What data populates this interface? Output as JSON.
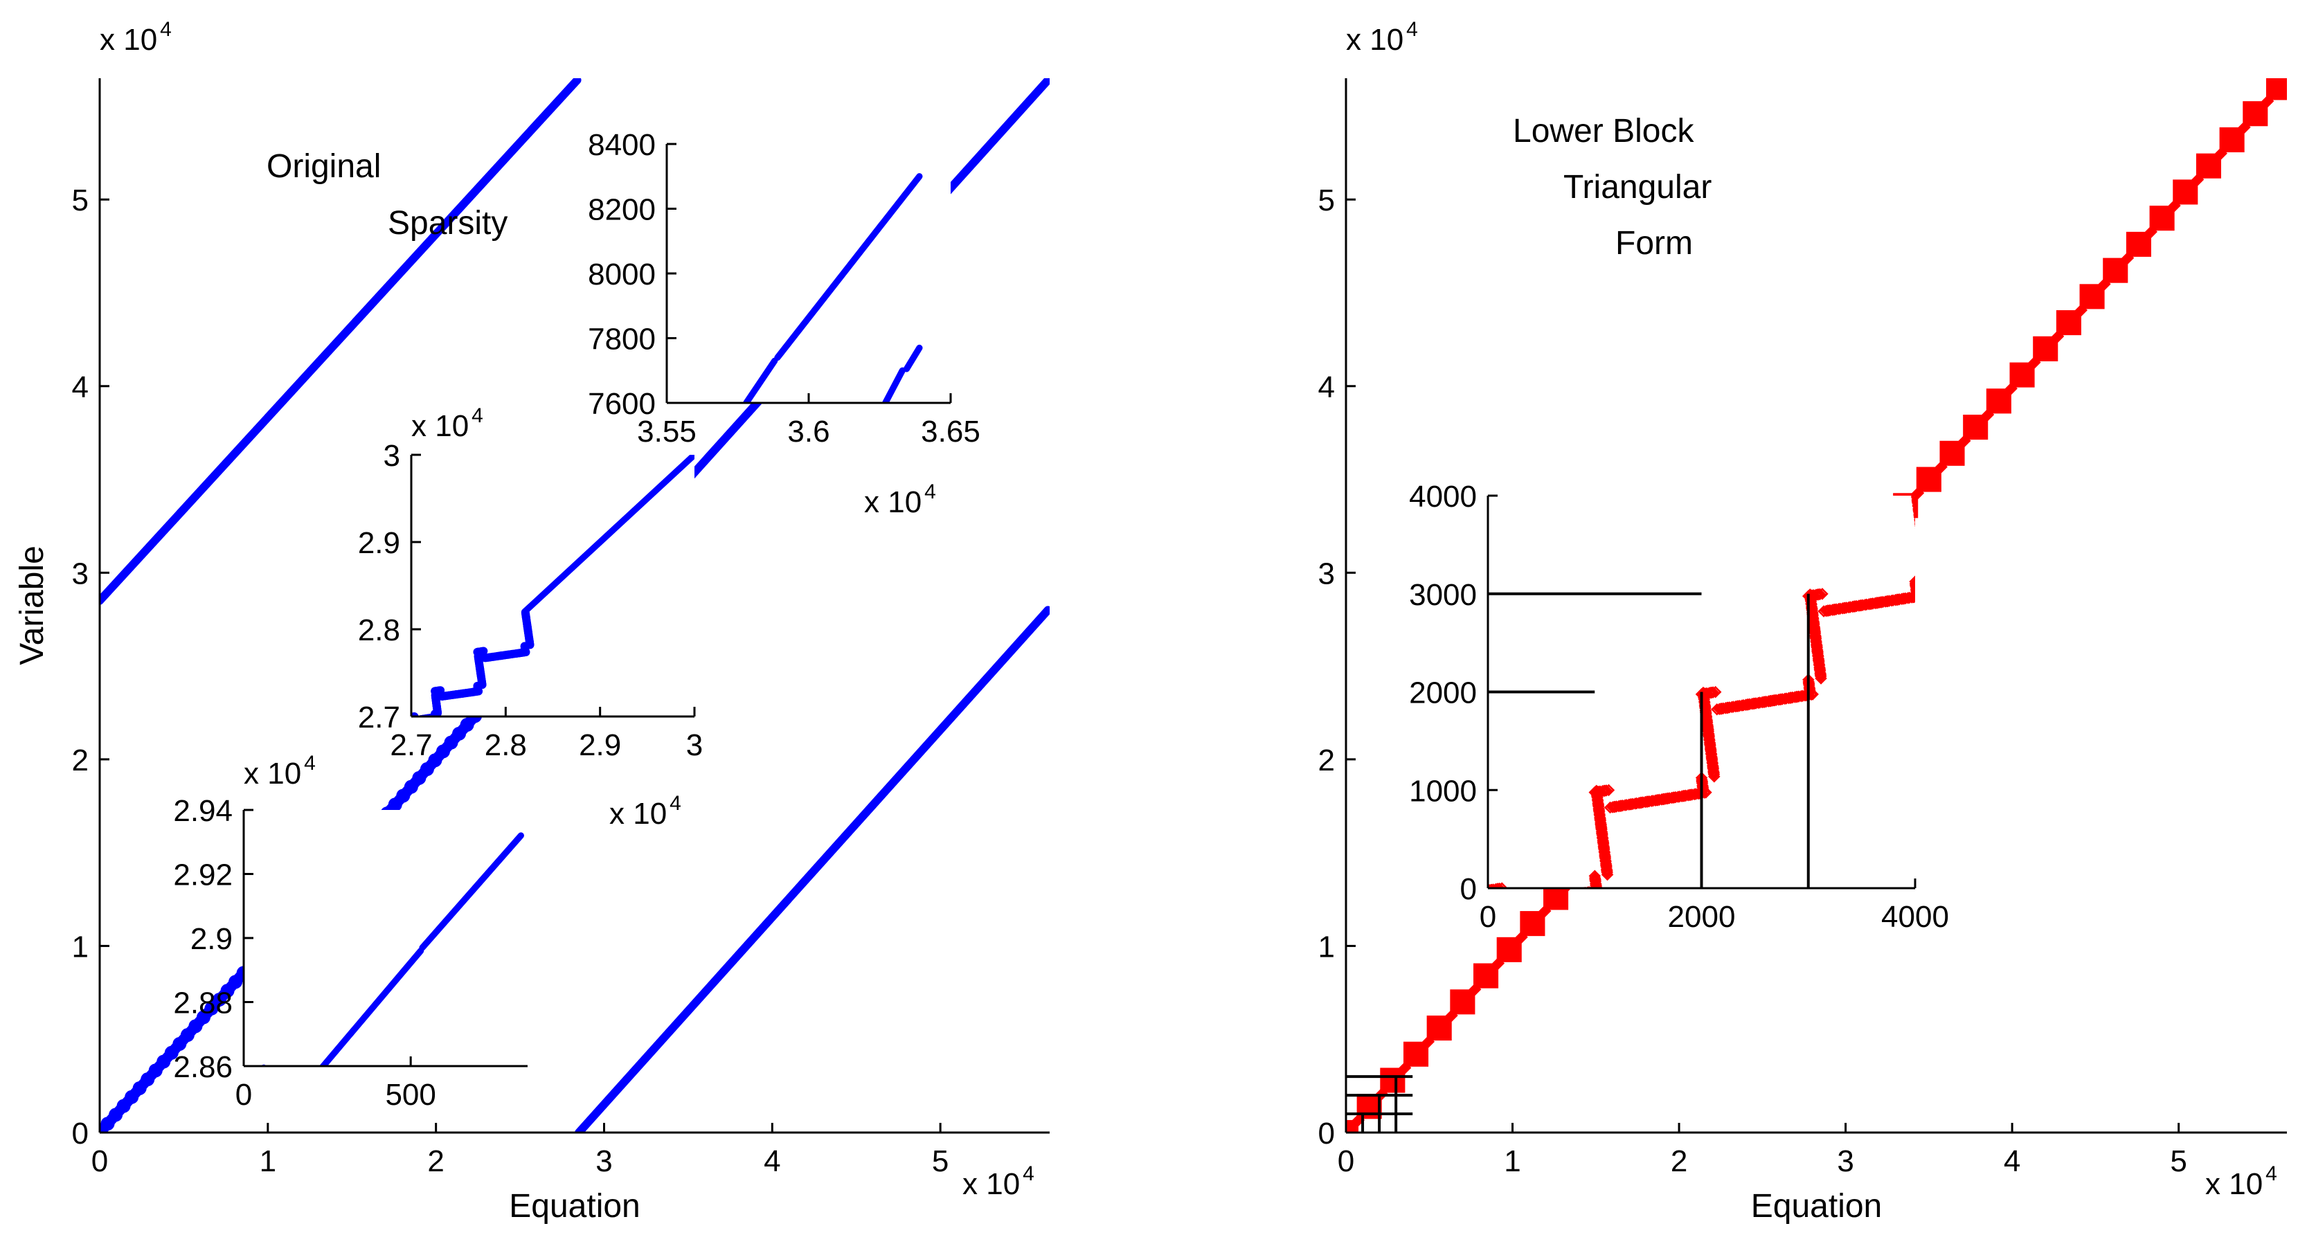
{
  "chart_data": [
    {
      "id": "left-main",
      "type": "scatter",
      "marker": "dot",
      "xlabel": "Equation",
      "ylabel": "Variable",
      "xlim": [
        0,
        56500
      ],
      "ylim": [
        56500,
        0
      ],
      "y_reversed": true,
      "xticks": [
        0,
        10000,
        20000,
        30000,
        40000,
        50000
      ],
      "xtick_labels": [
        "0",
        "1",
        "2",
        "3",
        "4",
        "5"
      ],
      "yticks": [
        0,
        10000,
        20000,
        30000,
        40000,
        50000
      ],
      "ytick_labels": [
        "0",
        "1",
        "2",
        "3",
        "4",
        "5"
      ],
      "x_multiplier": "x 10",
      "x_exp": "4",
      "y_multiplier": "x 10",
      "y_exp": "4",
      "annotations": [
        {
          "text": "Original"
        },
        {
          "text": "Sparsity"
        }
      ],
      "series": [
        {
          "color": "#0000ff",
          "segments": [
            {
              "x": [
                0,
                28500
              ],
              "y": [
                0,
                28500
              ],
              "width": 0.55
            },
            {
              "x": [
                28500,
                56400
              ],
              "y": [
                28500,
                56400
              ],
              "width": 0.28
            },
            {
              "x": [
                0,
                28400
              ],
              "y": [
                28500,
                56400
              ],
              "width": 0.28
            },
            {
              "x": [
                28500,
                56400
              ],
              "y": [
                0,
                28000
              ],
              "width": 0.28
            }
          ]
        }
      ]
    },
    {
      "id": "left-inset-a",
      "type": "scatter",
      "marker": "dot",
      "xlim": [
        35500,
        36500
      ],
      "ylim": [
        8400,
        7600
      ],
      "xticks": [
        35500,
        36000,
        36500
      ],
      "xtick_labels": [
        "3.55",
        "3.6",
        "3.65"
      ],
      "yticks": [
        7600,
        7800,
        8000,
        8200,
        8400
      ],
      "ytick_labels": [
        "7600",
        "7800",
        "8000",
        "8200",
        "8400"
      ],
      "x_multiplier": "x 10",
      "x_exp": "4",
      "series": [
        {
          "color": "#0000ff",
          "segments": [
            {
              "x": [
                35780,
                35880
              ],
              "y": [
                7600,
                7730
              ],
              "width": 0.3
            },
            {
              "x": [
                35890,
                36390
              ],
              "y": [
                7740,
                8300
              ],
              "width": 0.3
            },
            {
              "x": [
                36270,
                36330
              ],
              "y": [
                7600,
                7700
              ],
              "width": 0.3
            },
            {
              "x": [
                36345,
                36390
              ],
              "y": [
                7705,
                7770
              ],
              "width": 0.3
            }
          ]
        }
      ]
    },
    {
      "id": "left-inset-b",
      "type": "scatter",
      "marker": "dot",
      "xlim": [
        27000,
        30000
      ],
      "ylim": [
        30000,
        27000
      ],
      "xticks": [
        27000,
        28000,
        29000,
        30000
      ],
      "xtick_labels": [
        "2.7",
        "2.8",
        "2.9",
        "3"
      ],
      "yticks": [
        27000,
        28000,
        29000,
        30000
      ],
      "ytick_labels": [
        "2.7",
        "2.8",
        "2.9",
        "3"
      ],
      "x_multiplier": "x 10",
      "x_exp": "4",
      "y_multiplier": "x 10",
      "y_exp": "4",
      "series": [
        {
          "color": "#0000ff",
          "blocks": [
            {
              "x0": 27000,
              "x1": 27250,
              "y0": 27000,
              "y1": 27250
            },
            {
              "x0": 27250,
              "x1": 27700,
              "y0": 27300,
              "y1": 27700
            },
            {
              "x0": 27700,
              "x1": 28200,
              "y0": 27750,
              "y1": 28200
            }
          ],
          "segments": [
            {
              "x": [
                28200,
                30000
              ],
              "y": [
                28200,
                30000
              ],
              "width": 0.3
            }
          ]
        }
      ]
    },
    {
      "id": "left-inset-c",
      "type": "scatter",
      "marker": "dot",
      "xlim": [
        0,
        850
      ],
      "ylim": [
        29400,
        28600
      ],
      "xticks": [
        0,
        500
      ],
      "xtick_labels": [
        "0",
        "500"
      ],
      "yticks": [
        28600,
        28800,
        29000,
        29200,
        29400
      ],
      "ytick_labels": [
        "2.86",
        "2.88",
        "2.9",
        "2.92",
        "2.94"
      ],
      "y_multiplier": "x 10",
      "y_exp": "4",
      "series": [
        {
          "color": "#0000ff",
          "segments": [
            {
              "x": [
                0,
                60
              ],
              "y": [
                28520,
                28595
              ],
              "width": 0.3
            },
            {
              "x": [
                230,
                530
              ],
              "y": [
                28590,
                28960
              ],
              "width": 0.3
            },
            {
              "x": [
                535,
                830
              ],
              "y": [
                28970,
                29320
              ],
              "width": 0.3
            }
          ]
        }
      ]
    },
    {
      "id": "right-main",
      "type": "scatter",
      "marker": "diamond",
      "xlabel": "Equation",
      "xlim": [
        0,
        56500
      ],
      "ylim": [
        56500,
        0
      ],
      "y_reversed": true,
      "xticks": [
        0,
        10000,
        20000,
        30000,
        40000,
        50000
      ],
      "xtick_labels": [
        "0",
        "1",
        "2",
        "3",
        "4",
        "5"
      ],
      "yticks": [
        0,
        10000,
        20000,
        30000,
        40000,
        50000
      ],
      "ytick_labels": [
        "0",
        "1",
        "2",
        "3",
        "4",
        "5"
      ],
      "x_multiplier": "x 10",
      "x_exp": "4",
      "y_multiplier": "x 10",
      "y_exp": "4",
      "annotations": [
        {
          "text": "Lower Block"
        },
        {
          "text": "Triangular"
        },
        {
          "text": "Form"
        }
      ],
      "series": [
        {
          "color": "#ff0000",
          "band_segments": [
            {
              "x": [
                0,
                23700
              ],
              "y": [
                0,
                23700
              ]
            },
            {
              "x": [
                33600,
                56500
              ],
              "y": [
                33600,
                56500
              ]
            }
          ],
          "band_width": 1500
        }
      ],
      "block_lines": [
        {
          "x": [
            0,
            4000
          ],
          "y": [
            1000,
            1000
          ]
        },
        {
          "x": [
            0,
            4000
          ],
          "y": [
            2000,
            2000
          ]
        },
        {
          "x": [
            0,
            4000
          ],
          "y": [
            3000,
            3000
          ]
        },
        {
          "x": [
            1000,
            1000
          ],
          "y": [
            0,
            1000
          ]
        },
        {
          "x": [
            2000,
            2000
          ],
          "y": [
            0,
            2000
          ]
        },
        {
          "x": [
            3000,
            3000
          ],
          "y": [
            0,
            3000
          ]
        }
      ]
    },
    {
      "id": "right-inset",
      "type": "scatter",
      "marker": "diamond",
      "xlim": [
        0,
        4000
      ],
      "ylim": [
        4000,
        0
      ],
      "xticks": [
        0,
        2000,
        4000
      ],
      "xtick_labels": [
        "0",
        "2000",
        "4000"
      ],
      "yticks": [
        0,
        1000,
        2000,
        3000,
        4000
      ],
      "ytick_labels": [
        "0",
        "1000",
        "2000",
        "3000",
        "4000"
      ],
      "series": [
        {
          "color": "#ff0000",
          "blocks": [
            {
              "x0": 0,
              "x1": 1000,
              "y0": 0,
              "y1": 1000
            },
            {
              "x0": 1000,
              "x1": 2000,
              "y0": 1000,
              "y1": 2000
            },
            {
              "x0": 2000,
              "x1": 3000,
              "y0": 2000,
              "y1": 3000
            },
            {
              "x0": 3000,
              "x1": 4000,
              "y0": 3000,
              "y1": 4000
            }
          ]
        }
      ],
      "block_lines": [
        {
          "x": [
            0,
            1000
          ],
          "y": [
            2000,
            2000
          ]
        },
        {
          "x": [
            0,
            2000
          ],
          "y": [
            3000,
            3000
          ]
        },
        {
          "x": [
            2000,
            2000
          ],
          "y": [
            0,
            2000
          ]
        },
        {
          "x": [
            3000,
            3000
          ],
          "y": [
            0,
            3000
          ]
        }
      ]
    }
  ]
}
